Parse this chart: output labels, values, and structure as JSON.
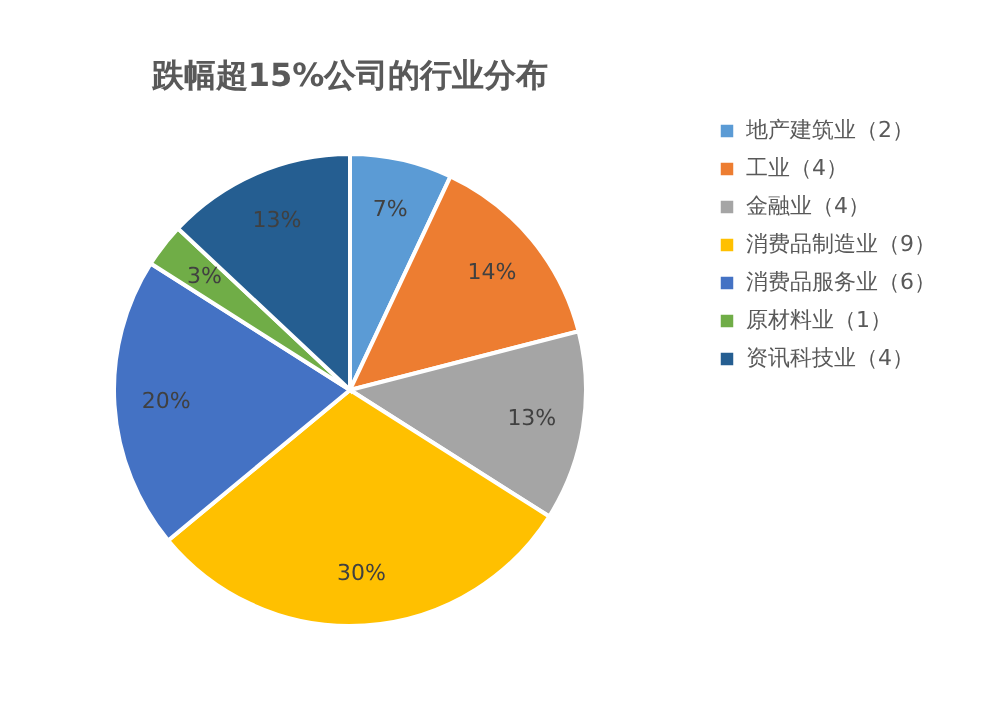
{
  "chart_data": {
    "type": "pie",
    "title": "跌幅超15%公司的行业分布",
    "categories": [
      "地产建筑业（2）",
      "工业（4）",
      "金融业（4）",
      "消费品制造业（9）",
      "消费品服务业（6）",
      "原材料业（1）",
      "资讯科技业（4）"
    ],
    "values": [
      7,
      14,
      13,
      30,
      20,
      3,
      13
    ],
    "value_labels": [
      "7%",
      "14%",
      "13%",
      "30%",
      "20%",
      "3%",
      "13%"
    ],
    "colors": [
      "#5b9bd5",
      "#ed7d31",
      "#a5a5a5",
      "#ffc000",
      "#4472c4",
      "#70ad47",
      "#255e91"
    ],
    "legend": "right"
  }
}
